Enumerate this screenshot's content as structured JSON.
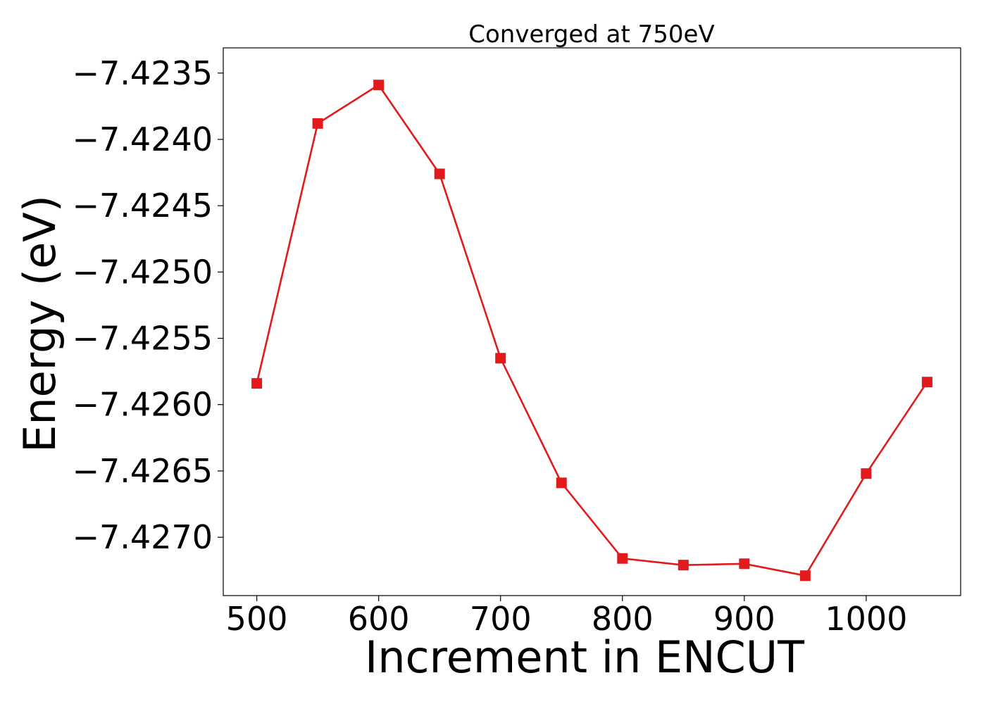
{
  "chart_data": {
    "type": "line",
    "title": "Converged at 750eV",
    "xlabel": "Increment in ENCUT",
    "ylabel": "Energy (eV)",
    "xlim": [
      472.5,
      1077.5
    ],
    "ylim": [
      -7.42744,
      -7.42331
    ],
    "xticks": [
      500,
      600,
      700,
      800,
      900,
      1000
    ],
    "xtick_labels": [
      "500",
      "600",
      "700",
      "800",
      "900",
      "1000"
    ],
    "yticks": [
      -7.4235,
      -7.424,
      -7.4245,
      -7.425,
      -7.4255,
      -7.426,
      -7.4265,
      -7.427
    ],
    "ytick_labels": [
      "−7.4235",
      "−7.4240",
      "−7.4245",
      "−7.4250",
      "−7.4255",
      "−7.4260",
      "−7.4265",
      "−7.4270"
    ],
    "grid": false,
    "series": [
      {
        "marker": "square",
        "color": "#e31a1c",
        "x": [
          500,
          550,
          600,
          650,
          700,
          750,
          800,
          850,
          900,
          950,
          1000,
          1050
        ],
        "y": [
          -7.42584,
          -7.42388,
          -7.42359,
          -7.42426,
          -7.42565,
          -7.42659,
          -7.42716,
          -7.42721,
          -7.4272,
          -7.42729,
          -7.42652,
          -7.42583
        ]
      }
    ]
  }
}
